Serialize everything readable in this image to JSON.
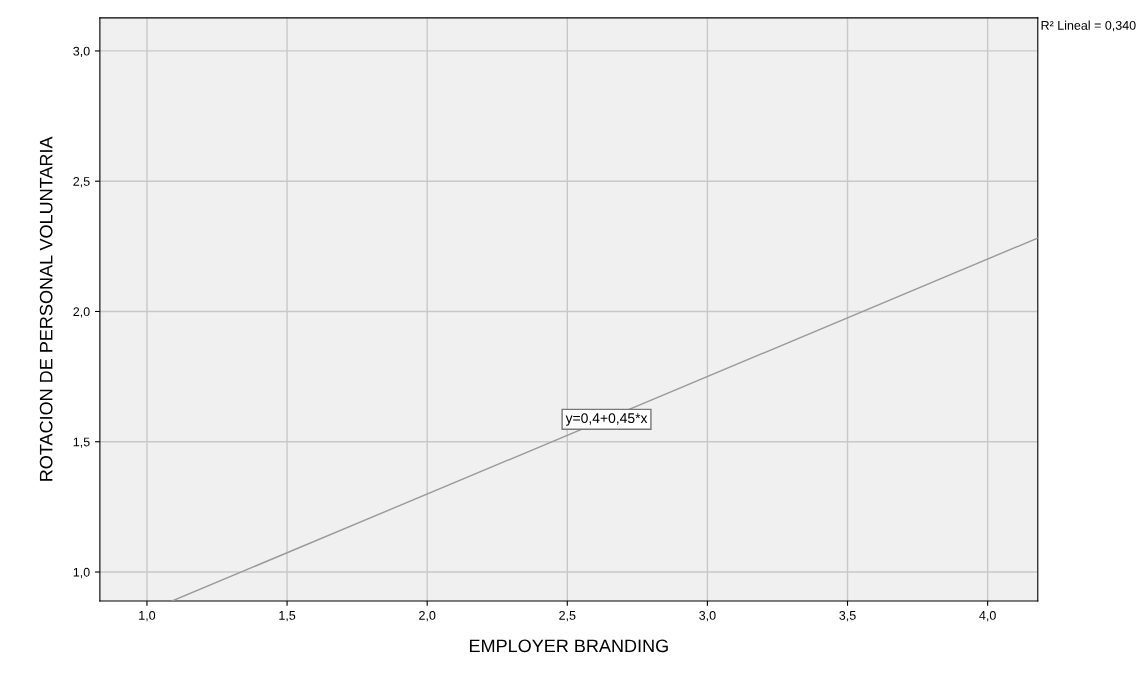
{
  "chart_data": {
    "type": "line",
    "xlabel": "EMPLOYER BRANDING",
    "ylabel": "ROTACION DE PERSONAL VOLUNTARIA",
    "series": [
      {
        "x": [
          1.09,
          4.179
        ],
        "values": [
          0.889,
          2.282
        ],
        "color": "#999999"
      }
    ],
    "xlim": [
      0.832,
      4.179
    ],
    "ylim": [
      0.889,
      3.127
    ],
    "xticks": [
      {
        "value": 1.0,
        "label": "1,0"
      },
      {
        "value": 1.5,
        "label": "1,5"
      },
      {
        "value": 2.0,
        "label": "2,0"
      },
      {
        "value": 2.5,
        "label": "2,5"
      },
      {
        "value": 3.0,
        "label": "3,0"
      },
      {
        "value": 3.5,
        "label": "3,5"
      },
      {
        "value": 4.0,
        "label": "4,0"
      }
    ],
    "yticks": [
      {
        "value": 1.0,
        "label": "1,0"
      },
      {
        "value": 1.5,
        "label": "1,5"
      },
      {
        "value": 2.0,
        "label": "2,0"
      },
      {
        "value": 2.5,
        "label": "2,5"
      },
      {
        "value": 3.0,
        "label": "3,0"
      }
    ],
    "annotations": [
      {
        "text": "y=0,4+0,45*x",
        "x": 2.64,
        "y": 1.586
      },
      "R² Lineal = 0,340"
    ],
    "grid": true,
    "marker": "none",
    "line_style": "solid",
    "legend": false
  }
}
